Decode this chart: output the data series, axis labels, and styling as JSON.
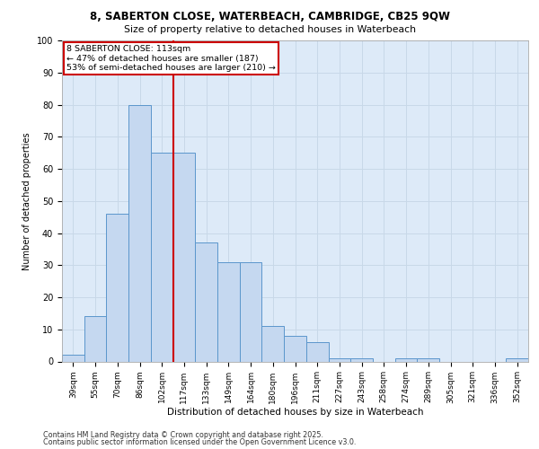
{
  "title_line1": "8, SABERTON CLOSE, WATERBEACH, CAMBRIDGE, CB25 9QW",
  "title_line2": "Size of property relative to detached houses in Waterbeach",
  "xlabel": "Distribution of detached houses by size in Waterbeach",
  "ylabel": "Number of detached properties",
  "categories": [
    "39sqm",
    "55sqm",
    "70sqm",
    "86sqm",
    "102sqm",
    "117sqm",
    "133sqm",
    "149sqm",
    "164sqm",
    "180sqm",
    "196sqm",
    "211sqm",
    "227sqm",
    "243sqm",
    "258sqm",
    "274sqm",
    "289sqm",
    "305sqm",
    "321sqm",
    "336sqm",
    "352sqm"
  ],
  "values": [
    2,
    14,
    46,
    80,
    65,
    65,
    37,
    31,
    31,
    11,
    8,
    6,
    1,
    1,
    0,
    1,
    1,
    0,
    0,
    0,
    1
  ],
  "bar_color": "#c5d8f0",
  "bar_edge_color": "#5b96cc",
  "vline_color": "#cc0000",
  "vline_index": 4.5,
  "annotation_text": "8 SABERTON CLOSE: 113sqm\n← 47% of detached houses are smaller (187)\n53% of semi-detached houses are larger (210) →",
  "annotation_box_color": "#cc0000",
  "ylim": [
    0,
    100
  ],
  "yticks": [
    0,
    10,
    20,
    30,
    40,
    50,
    60,
    70,
    80,
    90,
    100
  ],
  "grid_color": "#c8d8e8",
  "background_color": "#ddeaf8",
  "footer_line1": "Contains HM Land Registry data © Crown copyright and database right 2025.",
  "footer_line2": "Contains public sector information licensed under the Open Government Licence v3.0."
}
